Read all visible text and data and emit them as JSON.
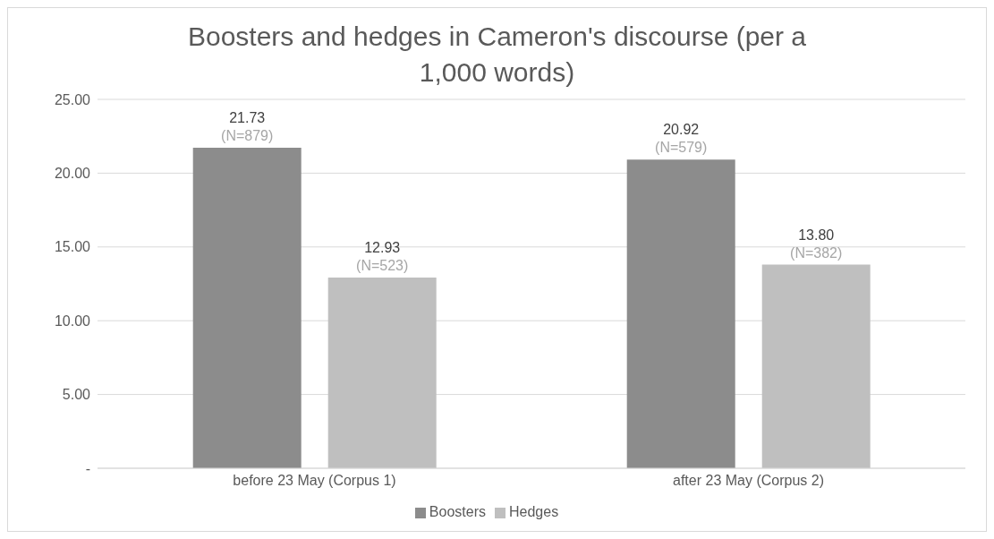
{
  "chart_data": {
    "type": "bar",
    "title": "Boosters and hedges in Cameron's discourse (per a 1,000 words)",
    "categories": [
      "before 23 May (Corpus 1)",
      "after 23 May (Corpus 2)"
    ],
    "series": [
      {
        "name": "Boosters",
        "color": "#8c8c8c",
        "values": [
          21.73,
          20.92
        ],
        "value_labels": [
          "21.73\n(N=879)",
          "20.92\n(N=579)"
        ]
      },
      {
        "name": "Hedges",
        "color": "#bfbfbf",
        "values": [
          12.93,
          13.8
        ],
        "value_labels": [
          "12.93\n(N=523)",
          "13.80\n(N=382)"
        ]
      }
    ],
    "ylim": [
      0,
      25
    ],
    "yticks": [
      {
        "value": 0,
        "label": "-"
      },
      {
        "value": 5,
        "label": "5.00"
      },
      {
        "value": 10,
        "label": "10.00"
      },
      {
        "value": 15,
        "label": "15.00"
      },
      {
        "value": 20,
        "label": "20.00"
      },
      {
        "value": 25,
        "label": "25.00"
      }
    ],
    "grid": "y",
    "legend": "bottom"
  }
}
